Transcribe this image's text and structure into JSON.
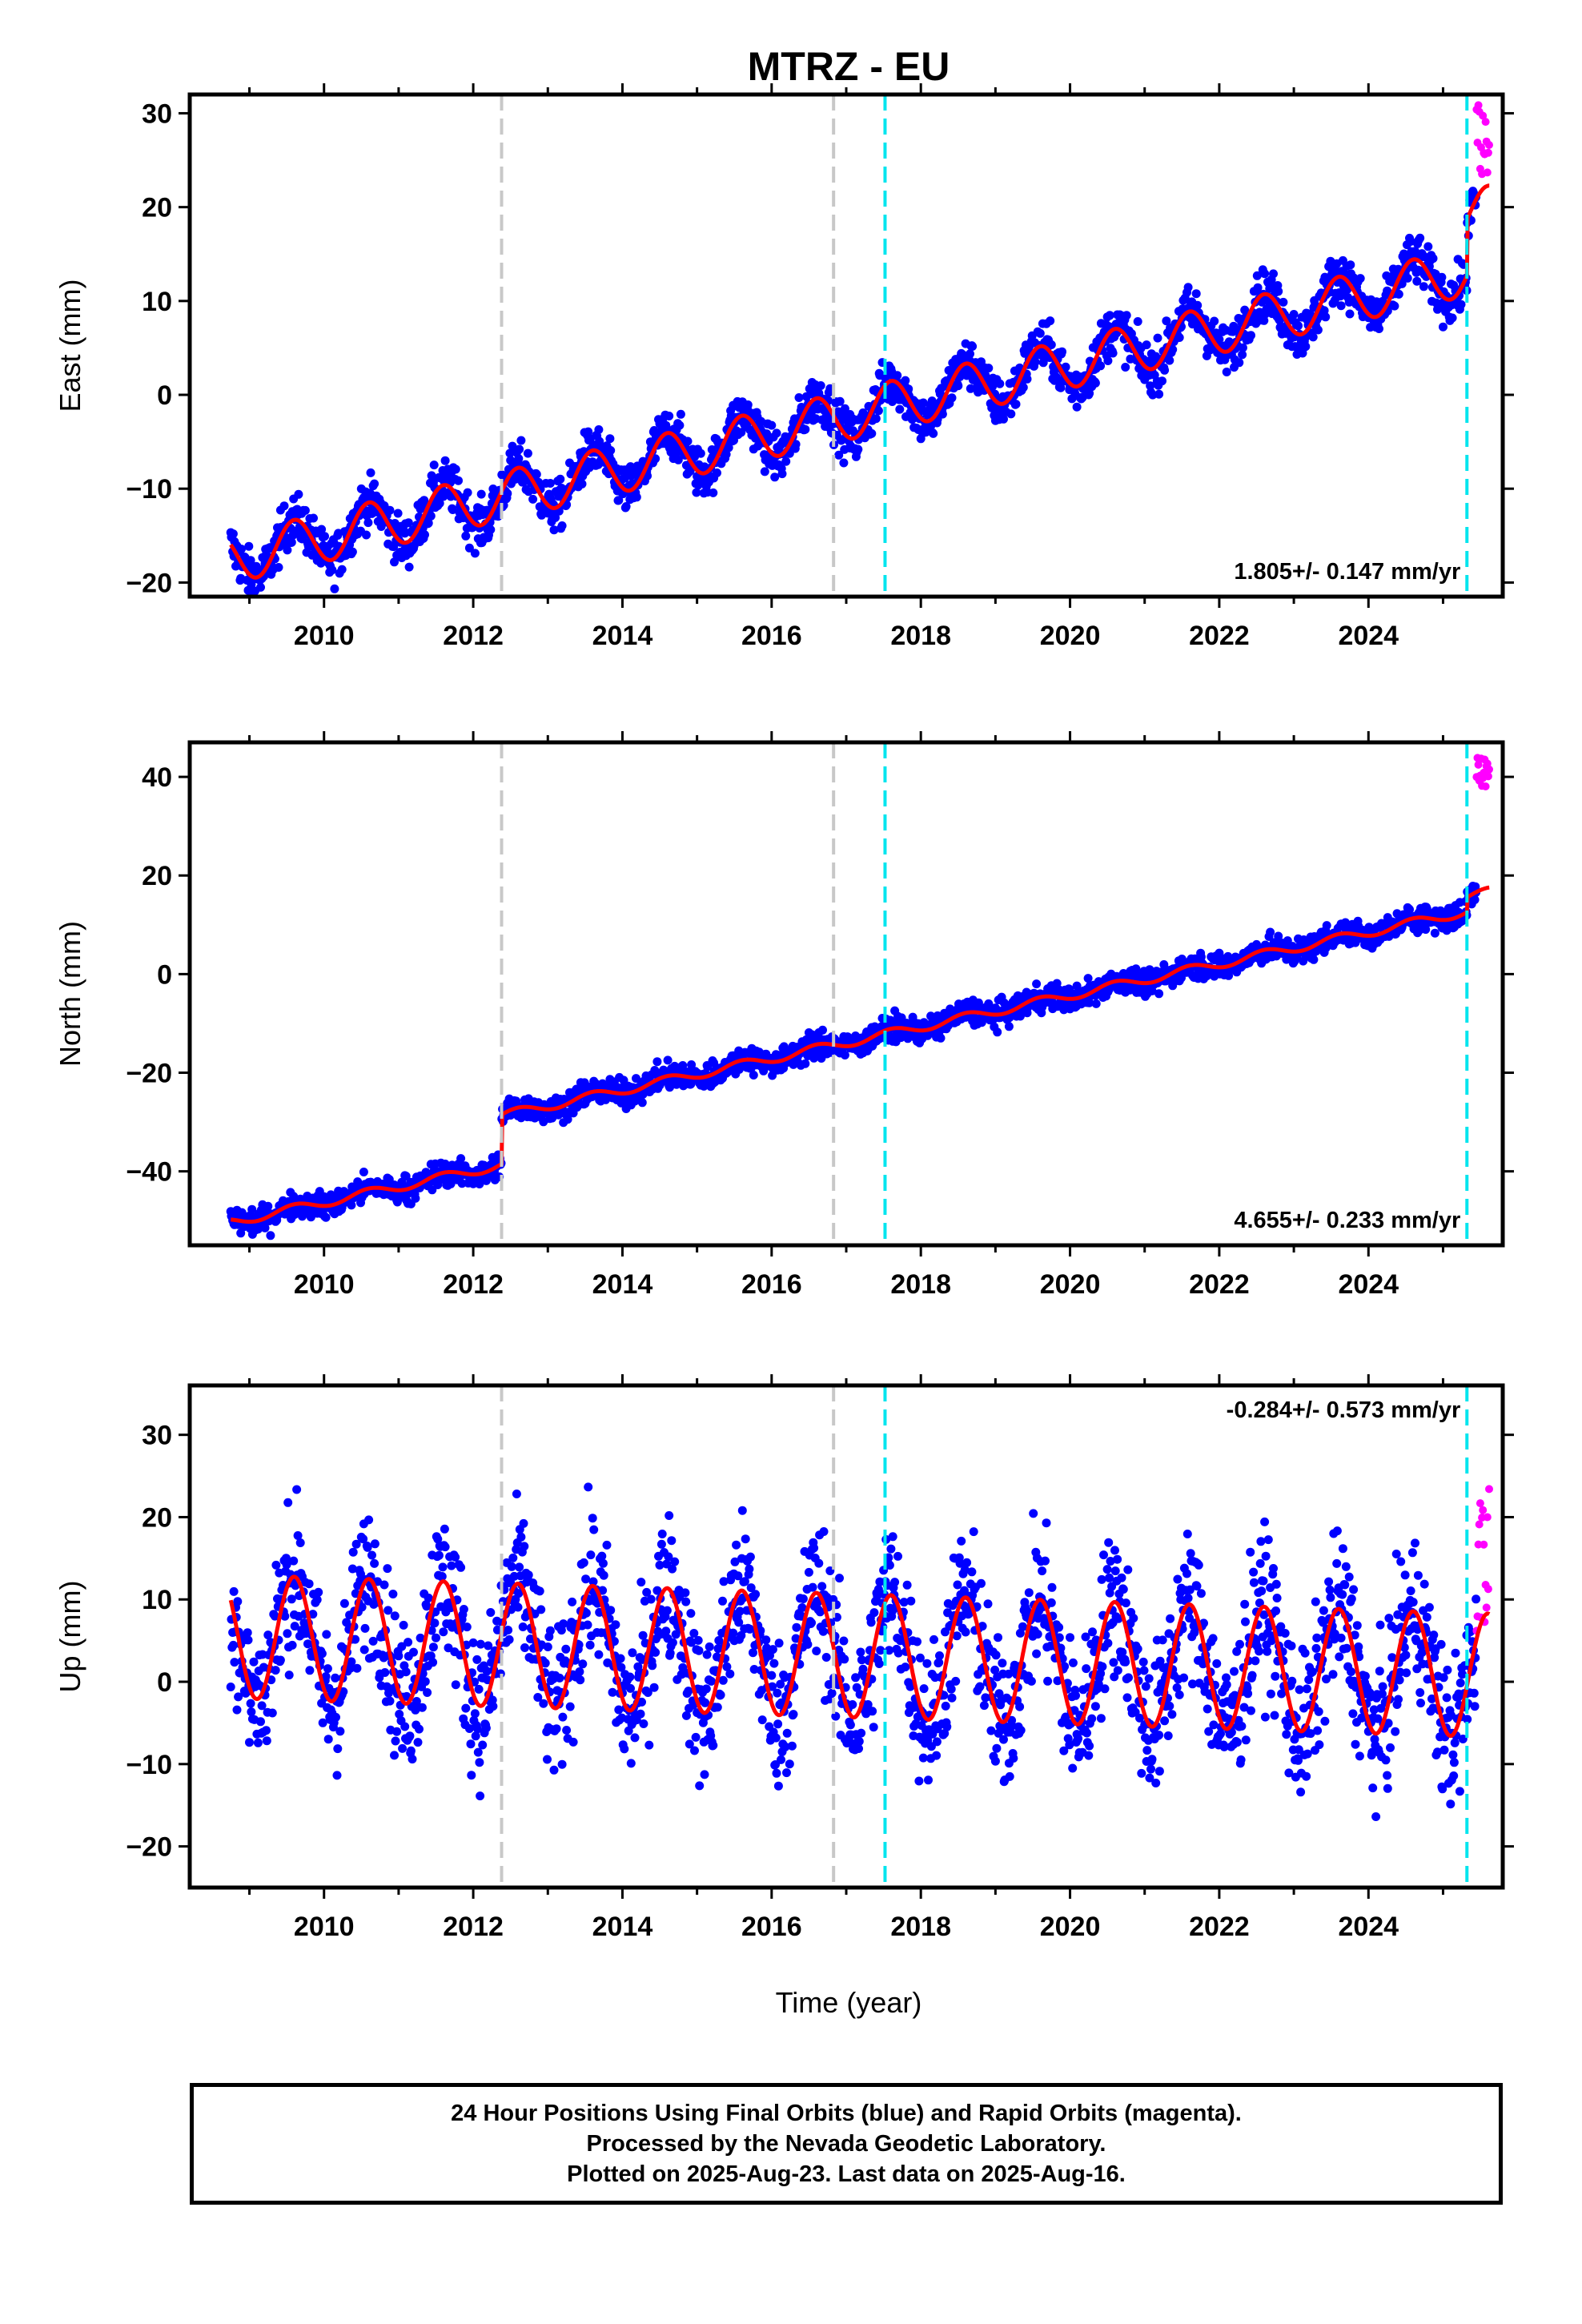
{
  "chart_data": {
    "title": "MTRZ - EU",
    "xlabel": "Time (year)",
    "x_ticks": [
      "2010",
      "2012",
      "2014",
      "2016",
      "2018",
      "2020",
      "2022",
      "2024"
    ],
    "xlim": [
      2008.2,
      2025.8
    ],
    "data_start": 2008.75,
    "data_end": 2025.62,
    "rapid_start": 2025.45,
    "vlines": [
      {
        "year": 2012.38,
        "color": "#c8c8c8"
      },
      {
        "year": 2016.83,
        "color": "#c8c8c8"
      },
      {
        "year": 2017.52,
        "color": "#00e5ee"
      },
      {
        "year": 2025.32,
        "color": "#00e5ee"
      }
    ],
    "colors": {
      "final": "#0000ff",
      "rapid": "#ff00ff",
      "model": "#ff0000"
    },
    "panels": [
      {
        "name": "east",
        "ylabel": "East (mm)",
        "ylim": [
          -21.5,
          32
        ],
        "y_ticks": [
          -20,
          -10,
          0,
          10,
          20,
          30
        ],
        "rate_label": "1.805+/- 0.147 mm/yr",
        "rate_pos": "bottom-right",
        "model": {
          "slope": 1.85,
          "offset": -17.5,
          "amp": 2.6,
          "noise": 1.3,
          "steps": [
            {
              "year": 2025.32,
              "value": 6
            }
          ]
        },
        "rapid_range": [
          23,
          31
        ]
      },
      {
        "name": "north",
        "ylabel": "North (mm)",
        "ylim": [
          -55,
          47
        ],
        "y_ticks": [
          -40,
          -20,
          0,
          20,
          40
        ],
        "rate_label": "4.655+/- 0.233 mm/yr",
        "rate_pos": "bottom-right",
        "model": {
          "slope": 3.2,
          "offset": -50.3,
          "amp": 0.9,
          "noise": 1.3,
          "steps": [
            {
              "year": 2012.38,
              "value": 10
            },
            {
              "year": 2025.32,
              "value": 3
            }
          ]
        },
        "rapid_range": [
          38,
          44
        ]
      },
      {
        "name": "up",
        "ylabel": "Up (mm)",
        "ylim": [
          -25,
          36
        ],
        "y_ticks": [
          -20,
          -10,
          0,
          10,
          20,
          30
        ],
        "rate_label": "-0.284+/- 0.573 mm/yr",
        "rate_pos": "top-right",
        "model": {
          "slope": -0.28,
          "offset": 5.5,
          "amp": 7.5,
          "noise": 4.5,
          "steps": []
        },
        "rapid_range": [
          4,
          24
        ]
      }
    ]
  },
  "footer": {
    "line1": "24 Hour Positions Using Final Orbits (blue) and Rapid Orbits (magenta).",
    "line2": "Processed by the Nevada Geodetic Laboratory.",
    "line3": "Plotted on 2025-Aug-23. Last data on 2025-Aug-16."
  }
}
